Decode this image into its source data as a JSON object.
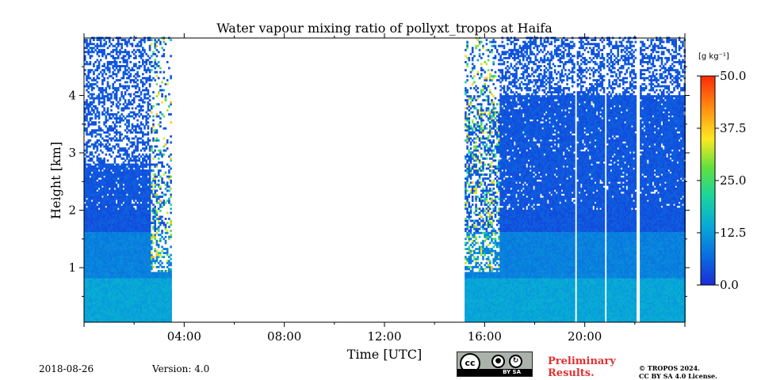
{
  "chart_data": {
    "type": "heatmap",
    "title": "Water vapour mixing ratio of pollyxt_tropos at Haifa",
    "xlabel": "Time [UTC]",
    "ylabel": "Height [km]",
    "xlim": [
      "00:00",
      "24:00"
    ],
    "ylim": [
      0.05,
      5.0
    ],
    "x_ticks": [
      "04:00",
      "08:00",
      "12:00",
      "16:00",
      "20:00"
    ],
    "y_ticks": [
      "1",
      "2",
      "3",
      "4"
    ],
    "colorbar": {
      "label": "[g kg⁻¹]",
      "range": [
        0.0,
        50.0
      ],
      "ticks": [
        "0.0",
        "12.5",
        "25.0",
        "37.5",
        "50.0"
      ],
      "colormap": [
        "#1a2dd8",
        "#0a6ee0",
        "#08a8d8",
        "#18d4a0",
        "#60e040",
        "#ffe820",
        "#ff8c10",
        "#ff2a08"
      ]
    },
    "data_segments_hours": [
      [
        0.0,
        3.45
      ],
      [
        15.2,
        22.05
      ],
      [
        22.2,
        24.0
      ]
    ],
    "gaps_hours": [
      [
        19.6,
        19.68
      ],
      [
        20.75,
        20.82
      ],
      [
        22.05,
        22.2
      ]
    ],
    "low_layer": {
      "height_km": [
        0.05,
        0.8
      ],
      "value_gkg": 12.5
    },
    "mid_layer": {
      "height_km": [
        0.8,
        1.6
      ],
      "value_gkg": 8.0
    },
    "dense_upper_km": {
      "night": 2.8,
      "evening": 4.0
    },
    "upper_value_gkg": 3.0
  },
  "footer": {
    "date": "2018-08-26",
    "version": "Version: 4.0",
    "preliminary": [
      "Preliminary",
      "Results."
    ],
    "copyright": [
      "© TROPOS 2024.",
      "CC BY SA 4.0 License."
    ],
    "cc_logo": {
      "cc": "cc",
      "by_icon": "person-icon",
      "sa_icon": "share-alike-icon",
      "strip": "BY    SA"
    }
  }
}
